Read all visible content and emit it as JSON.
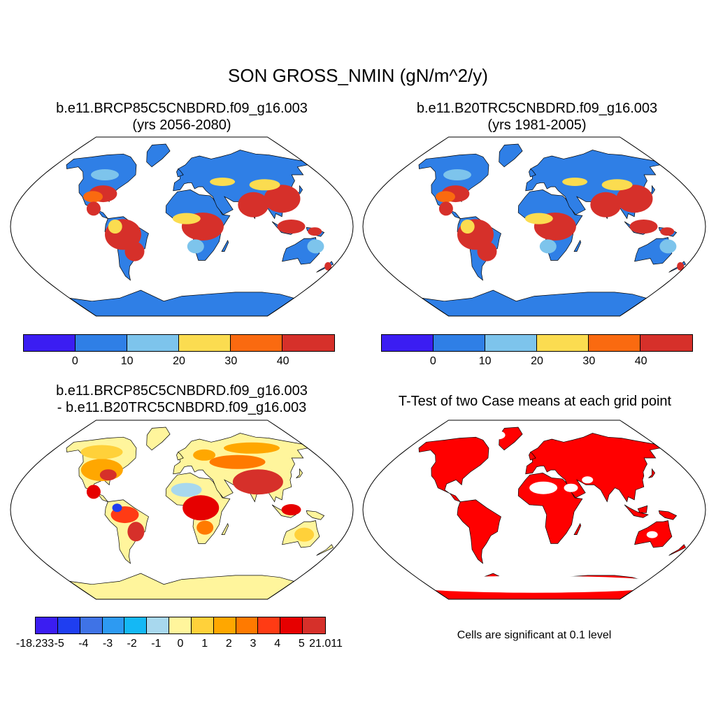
{
  "main_title": "SON GROSS_NMIN (gN/m^2/y)",
  "panels": [
    {
      "id": "future",
      "title_line1": "b.e11.BRCP85C5CNBDRD.f09_g16.003",
      "title_line2": "(yrs 2056-2080)"
    },
    {
      "id": "historical",
      "title_line1": "b.e11.B20TRC5CNBDRD.f09_g16.003",
      "title_line2": "(yrs 1981-2005)"
    },
    {
      "id": "difference",
      "title_line1": "b.e11.BRCP85C5CNBDRD.f09_g16.003",
      "title_line2": "- b.e11.B20TRC5CNBDRD.f09_g16.003"
    },
    {
      "id": "ttest",
      "title_line1": "T-Test of two Case means at each grid point",
      "title_line2": ""
    }
  ],
  "colorbar_top": {
    "colors": [
      "#3b1df2",
      "#2f7fe6",
      "#7dc4ec",
      "#fbdc50",
      "#fa6a10",
      "#d6302a"
    ],
    "labels": [
      "0",
      "10",
      "20",
      "30",
      "40"
    ]
  },
  "colorbar_diff": {
    "colors": [
      "#3b1df2",
      "#1f3ef0",
      "#3f73e6",
      "#2d9af2",
      "#14b8f5",
      "#a8d8ee",
      "#fff59c",
      "#ffd13a",
      "#ffa700",
      "#ff7a00",
      "#ff3b14",
      "#e60000",
      "#d6302a"
    ],
    "labels": [
      "-18.233",
      "-5",
      "-4",
      "-3",
      "-2",
      "-1",
      "0",
      "1",
      "2",
      "3",
      "4",
      "5",
      "21.011"
    ]
  },
  "significance_note": "Cells are significant at 0.1 level",
  "significance_color": "#ff0000"
}
